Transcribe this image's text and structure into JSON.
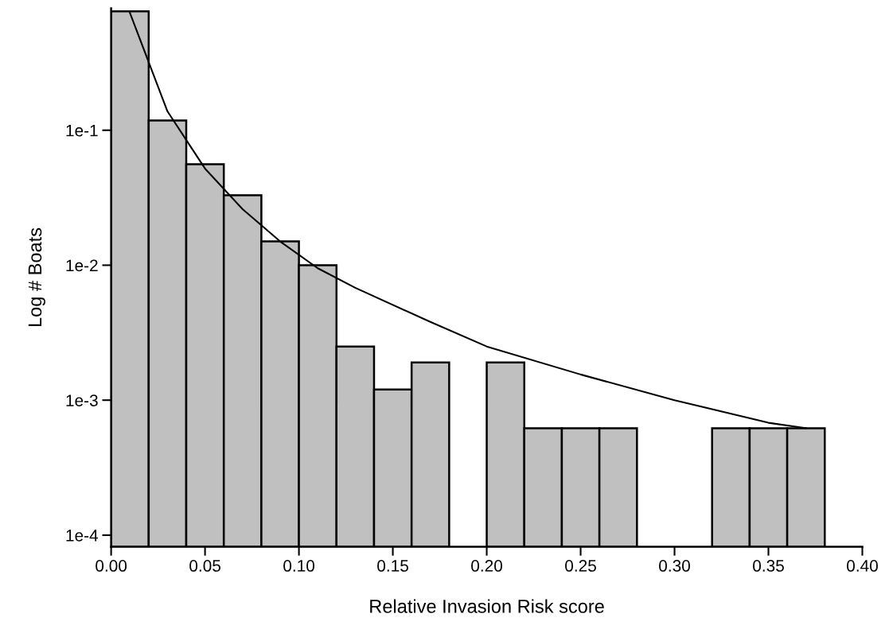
{
  "chart_data": {
    "type": "histogram",
    "xlabel": "Relative Invasion Risk score",
    "ylabel": "Log # Boats",
    "bins": [
      0.0,
      0.02,
      0.04,
      0.06,
      0.08,
      0.1,
      0.12,
      0.14,
      0.16,
      0.18,
      0.2,
      0.22,
      0.24,
      0.26,
      0.28,
      0.3,
      0.32,
      0.34,
      0.36,
      0.38
    ],
    "values": [
      0.76,
      0.118,
      0.056,
      0.033,
      0.015,
      0.01,
      0.0025,
      0.0012,
      0.0019,
      null,
      0.0019,
      0.00062,
      0.00062,
      0.00062,
      null,
      null,
      0.00062,
      0.00062,
      0.00062
    ],
    "color": "#c0c0c0",
    "series": [
      {
        "type": "line",
        "color": "#000000",
        "x": [
          0.01,
          0.03,
          0.05,
          0.07,
          0.09,
          0.11,
          0.13,
          0.17,
          0.2,
          0.25,
          0.3,
          0.35,
          0.37
        ],
        "values": [
          0.74,
          0.138,
          0.052,
          0.026,
          0.015,
          0.0095,
          0.0068,
          0.0038,
          0.0025,
          0.00155,
          0.001,
          0.00068,
          0.00062
        ]
      }
    ],
    "log": "y",
    "xlim": [
      0.0,
      0.4
    ],
    "ylim": [
      8.2e-05,
      0.8
    ],
    "xticks": [
      {
        "value": 0.0,
        "label": "0.00"
      },
      0.05,
      {
        "value": 0.1,
        "label": "0.10"
      },
      0.15,
      {
        "value": 0.2,
        "label": "0.20"
      },
      0.25,
      {
        "value": 0.3,
        "label": "0.30"
      },
      0.35,
      {
        "value": 0.4,
        "label": "0.40"
      }
    ],
    "yticks": [
      {
        "value": 0.1,
        "label": "1e-1"
      },
      {
        "value": 0.01,
        "label": "1e-2"
      },
      {
        "value": 0.001,
        "label": "1e-3"
      },
      {
        "value": 0.0001,
        "label": "1e-4"
      }
    ],
    "grid": false,
    "legend": false
  }
}
